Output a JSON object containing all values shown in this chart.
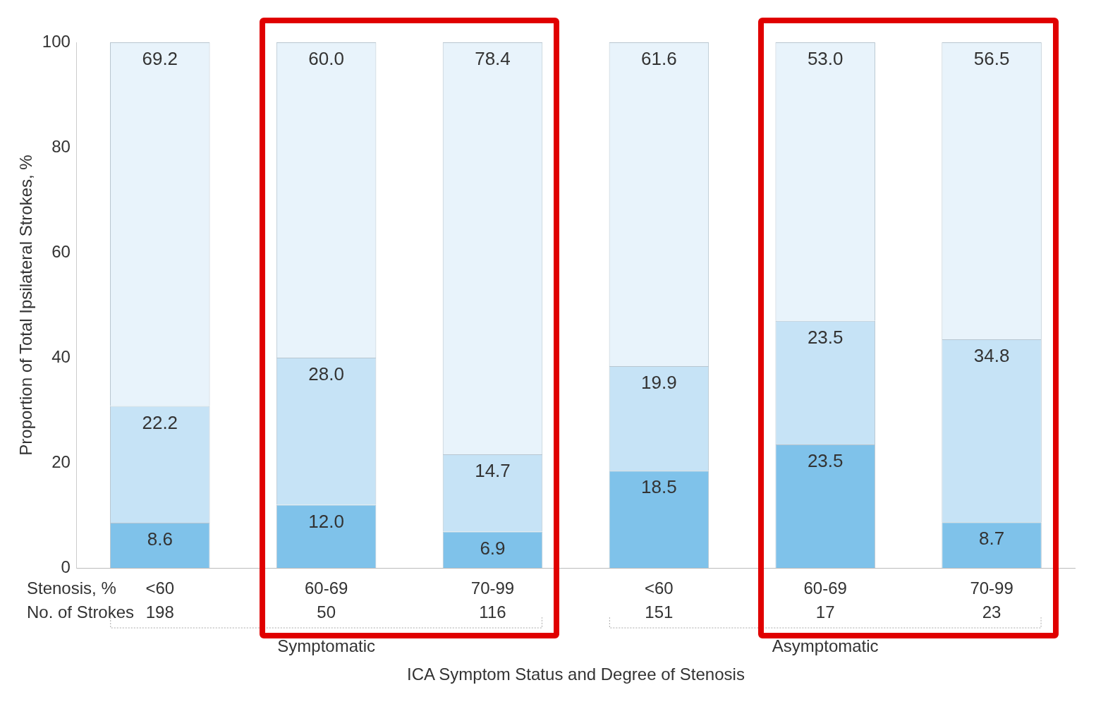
{
  "chart_data": {
    "type": "bar",
    "stacked": true,
    "ylabel": "Proportion of Total Ipsilateral Strokes, %",
    "xlabel": "ICA Symptom Status and Degree of Stenosis",
    "categories": [
      "<60\n198",
      "60-69\n50",
      "70-99\n116",
      "<60\n151",
      "60-69\n17",
      "70-99\n23"
    ],
    "series": [
      {
        "color": "#7fc2ea",
        "values": [
          8.6,
          12.0,
          6.9,
          18.5,
          23.5,
          8.7
        ],
        "value_labels": [
          "8.6",
          "12.0",
          "6.9",
          "18.5",
          "23.5",
          "8.7"
        ]
      },
      {
        "color": "#c6e3f6",
        "values": [
          22.2,
          28.0,
          14.7,
          19.9,
          23.5,
          34.8
        ],
        "value_labels": [
          "22.2",
          "28.0",
          "14.7",
          "19.9",
          "23.5",
          "34.8"
        ]
      },
      {
        "color": "#e8f3fb",
        "values": [
          69.2,
          60.0,
          78.4,
          61.6,
          53.0,
          56.5
        ],
        "value_labels": [
          "69.2",
          "60.0",
          "78.4",
          "61.6",
          "53.0",
          "56.5"
        ]
      }
    ],
    "ylim": [
      0,
      100
    ],
    "yticks": [
      0,
      20,
      40,
      60,
      80,
      100
    ],
    "grid": false,
    "legend": false,
    "annotations": [
      "Stenosis, %",
      "No. of Strokes",
      "Symptomatic",
      "Asymptomatic"
    ]
  }
}
